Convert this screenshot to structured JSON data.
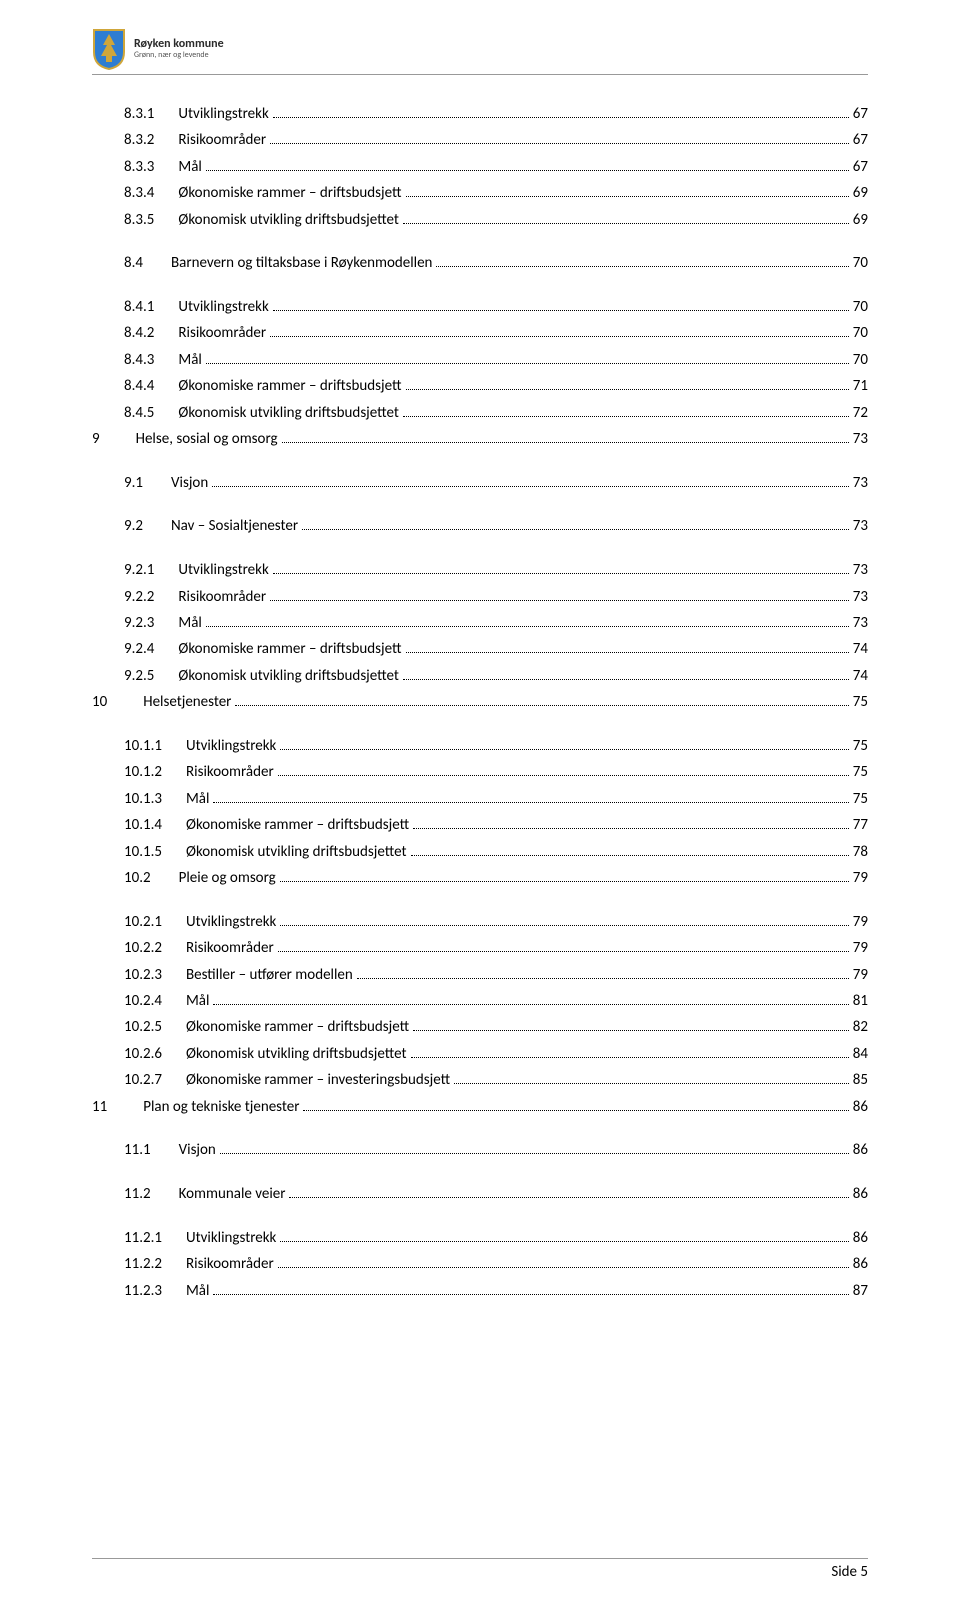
{
  "header": {
    "org_name": "Røyken kommune",
    "org_tagline": "Grønn, nær og levende",
    "logo": {
      "shield_fill": "#2e7dd1",
      "shield_stroke": "#cfa63a",
      "tree_fill": "#cfa63a"
    }
  },
  "footer": {
    "label": "Side 5"
  },
  "toc": [
    {
      "level": 2,
      "num": "8.3.1",
      "title": "Utviklingstrekk",
      "page": "67"
    },
    {
      "level": 2,
      "num": "8.3.2",
      "title": "Risikoområder",
      "page": "67"
    },
    {
      "level": 2,
      "num": "8.3.3",
      "title": "Mål",
      "page": "67"
    },
    {
      "level": 2,
      "num": "8.3.4",
      "title": "Økonomiske rammer – driftsbudsjett",
      "page": "69"
    },
    {
      "level": 2,
      "num": "8.3.5",
      "title": "Økonomisk utvikling driftsbudsjettet",
      "page": "69"
    },
    {
      "level": 1,
      "num": "8.4",
      "title": "Barnevern og tiltaksbase i Røykenmodellen",
      "page": "70",
      "gap_before": true
    },
    {
      "level": 2,
      "num": "8.4.1",
      "title": "Utviklingstrekk",
      "page": "70",
      "gap_before": true
    },
    {
      "level": 2,
      "num": "8.4.2",
      "title": "Risikoområder",
      "page": "70"
    },
    {
      "level": 2,
      "num": "8.4.3",
      "title": "Mål",
      "page": "70"
    },
    {
      "level": 2,
      "num": "8.4.4",
      "title": "Økonomiske rammer – driftsbudsjett",
      "page": "71"
    },
    {
      "level": 2,
      "num": "8.4.5",
      "title": "Økonomisk utvikling driftsbudsjettet",
      "page": "72"
    },
    {
      "level": 0,
      "num": "9",
      "title": "Helse, sosial og omsorg",
      "page": "73"
    },
    {
      "level": 1,
      "num": "9.1",
      "title": "Visjon",
      "page": "73",
      "gap_before": true
    },
    {
      "level": 1,
      "num": "9.2",
      "title": "Nav – Sosialtjenester",
      "page": "73",
      "gap_before": true
    },
    {
      "level": 2,
      "num": "9.2.1",
      "title": "Utviklingstrekk",
      "page": "73",
      "gap_before": true
    },
    {
      "level": 2,
      "num": "9.2.2",
      "title": "Risikoområder",
      "page": "73"
    },
    {
      "level": 2,
      "num": "9.2.3",
      "title": "Mål",
      "page": "73"
    },
    {
      "level": 2,
      "num": "9.2.4",
      "title": "Økonomiske rammer – driftsbudsjett",
      "page": "74"
    },
    {
      "level": 2,
      "num": "9.2.5",
      "title": "Økonomisk utvikling driftsbudsjettet",
      "page": "74"
    },
    {
      "level": 0,
      "num": "10",
      "title": "Helsetjenester",
      "page": "75"
    },
    {
      "level": 2,
      "num": "10.1.1",
      "title": "Utviklingstrekk",
      "page": "75",
      "gap_before": true
    },
    {
      "level": 2,
      "num": "10.1.2",
      "title": "Risikoområder",
      "page": "75"
    },
    {
      "level": 2,
      "num": "10.1.3",
      "title": "Mål",
      "page": "75"
    },
    {
      "level": 2,
      "num": "10.1.4",
      "title": "Økonomiske rammer – driftsbudsjett",
      "page": "77"
    },
    {
      "level": 2,
      "num": "10.1.5",
      "title": "Økonomisk utvikling driftsbudsjettet",
      "page": "78"
    },
    {
      "level": 1,
      "num": "10.2",
      "title": "Pleie og omsorg",
      "page": "79"
    },
    {
      "level": 2,
      "num": "10.2.1",
      "title": "Utviklingstrekk",
      "page": "79",
      "gap_before": true
    },
    {
      "level": 2,
      "num": "10.2.2",
      "title": "Risikoområder",
      "page": "79"
    },
    {
      "level": 2,
      "num": "10.2.3",
      "title": "Bestiller – utfører modellen",
      "page": "79"
    },
    {
      "level": 2,
      "num": "10.2.4",
      "title": "Mål",
      "page": "81"
    },
    {
      "level": 2,
      "num": "10.2.5",
      "title": "Økonomiske rammer – driftsbudsjett",
      "page": "82"
    },
    {
      "level": 2,
      "num": "10.2.6",
      "title": "Økonomisk utvikling driftsbudsjettet",
      "page": "84"
    },
    {
      "level": 2,
      "num": "10.2.7",
      "title": "Økonomiske rammer – investeringsbudsjett",
      "page": "85"
    },
    {
      "level": 0,
      "num": "11",
      "title": "Plan og tekniske tjenester",
      "page": "86"
    },
    {
      "level": 1,
      "num": "11.1",
      "title": "Visjon",
      "page": "86",
      "gap_before": true
    },
    {
      "level": 1,
      "num": "11.2",
      "title": "Kommunale veier",
      "page": "86",
      "gap_before": true
    },
    {
      "level": 2,
      "num": "11.2.1",
      "title": "Utviklingstrekk",
      "page": "86",
      "gap_before": true
    },
    {
      "level": 2,
      "num": "11.2.2",
      "title": "Risikoområder",
      "page": "86"
    },
    {
      "level": 2,
      "num": "11.2.3",
      "title": "Mål",
      "page": "87"
    }
  ]
}
